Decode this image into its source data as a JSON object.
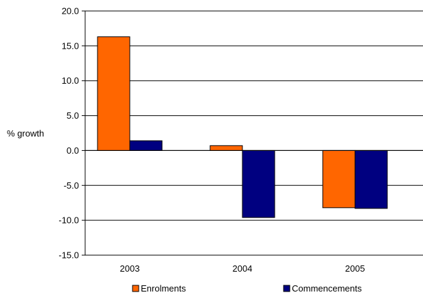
{
  "chart_data": {
    "type": "bar",
    "ylabel": "% growth",
    "categories": [
      "2003",
      "2004",
      "2005"
    ],
    "series": [
      {
        "name": "Enrolments",
        "values": [
          16.3,
          0.7,
          -8.2
        ],
        "color": "#ff6600"
      },
      {
        "name": "Commencements",
        "values": [
          1.4,
          -9.6,
          -8.3
        ],
        "color": "#000080"
      }
    ],
    "ylim": [
      -15.0,
      20.0
    ],
    "yticks": [
      "20.0",
      "15.0",
      "10.0",
      "5.0",
      "0.0",
      "-5.0",
      "-10.0",
      "-15.0"
    ],
    "grid": true,
    "legend": "bottom"
  }
}
